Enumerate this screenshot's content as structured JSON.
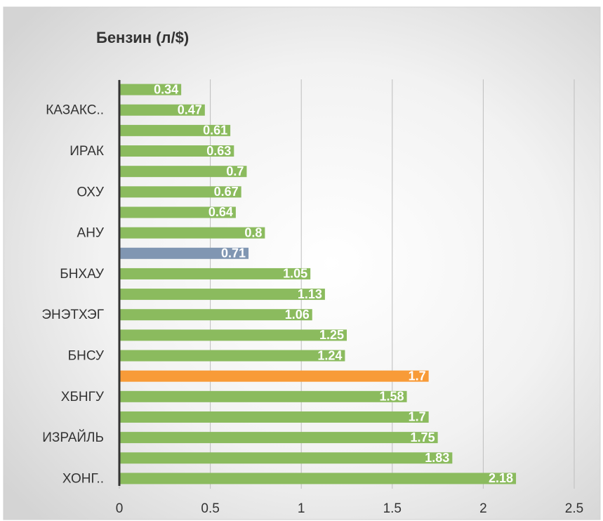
{
  "chart_data": {
    "type": "bar",
    "orientation": "horizontal",
    "title": "Бензин (л/$)",
    "categories": [
      null,
      "КАЗАКС..",
      null,
      "ИРАК",
      null,
      "ОХУ",
      null,
      "АНУ",
      null,
      "БНХАУ",
      null,
      "ЭНЭТХЭГ",
      null,
      "БНСУ",
      null,
      "ХБНГУ",
      null,
      "ИЗРАЙЛЬ",
      null,
      "ХОНГ.."
    ],
    "values": [
      0.34,
      0.47,
      0.61,
      0.63,
      0.7,
      0.67,
      0.64,
      0.8,
      0.71,
      1.05,
      1.13,
      1.06,
      1.25,
      1.24,
      1.7,
      1.58,
      1.7,
      1.75,
      1.83,
      2.18
    ],
    "colors": [
      "#8bbb5e",
      "#8bbb5e",
      "#8bbb5e",
      "#8bbb5e",
      "#8bbb5e",
      "#8bbb5e",
      "#8bbb5e",
      "#8bbb5e",
      "#8096b2",
      "#8bbb5e",
      "#8bbb5e",
      "#8bbb5e",
      "#8bbb5e",
      "#8bbb5e",
      "#f89b38",
      "#8bbb5e",
      "#8bbb5e",
      "#8bbb5e",
      "#8bbb5e",
      "#8bbb5e"
    ],
    "xlim": [
      0,
      2.5
    ],
    "xticks": [
      0,
      0.5,
      1,
      1.5,
      2,
      2.5
    ],
    "grid": true
  }
}
